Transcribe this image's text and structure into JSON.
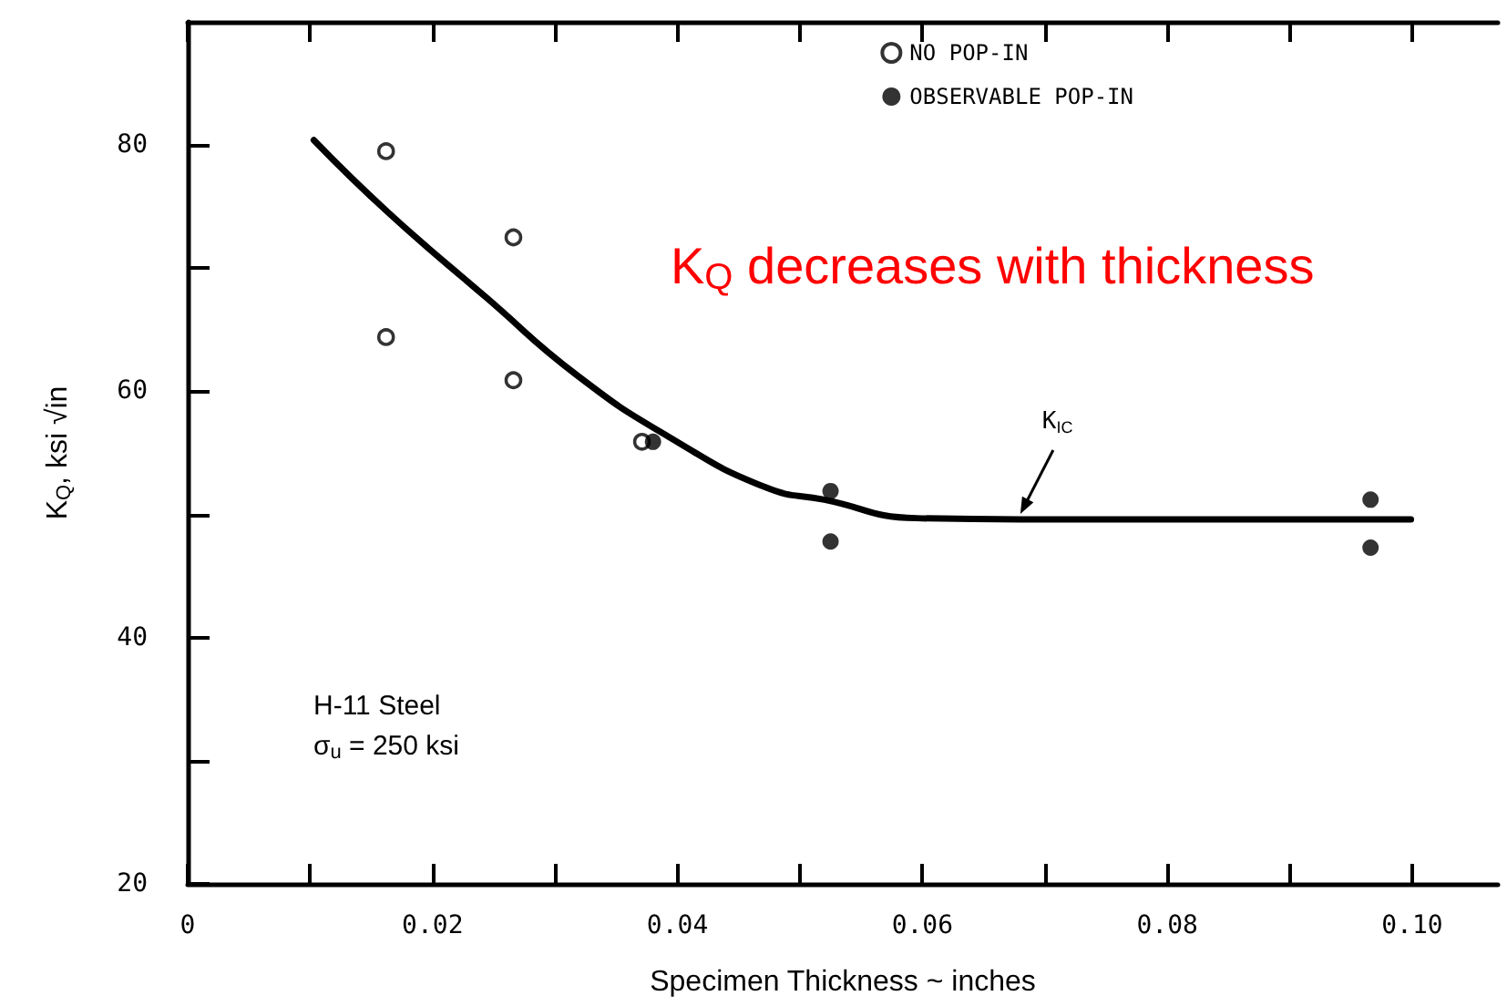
{
  "chart_data": {
    "type": "scatter",
    "xlabel": "Specimen Thickness ~ inches",
    "ylabel": "K$_{Q}$, ksi √in",
    "xlim": [
      0,
      0.107
    ],
    "xticks": [
      0,
      {
        "value": 0.01,
        "label": null
      },
      0.02,
      {
        "value": 0.03,
        "label": null
      },
      0.04,
      {
        "value": 0.05,
        "label": null
      },
      0.06,
      {
        "value": 0.07,
        "label": null
      },
      0.08,
      {
        "value": 0.09,
        "label": null
      },
      {
        "value": 0.1,
        "label": "0.10"
      }
    ],
    "ylim": [
      20,
      90
    ],
    "yticks": [
      20,
      {
        "value": 30,
        "label": null
      },
      40,
      {
        "value": 50,
        "label": null
      },
      60,
      {
        "value": 70,
        "label": null
      },
      80
    ],
    "grid": false,
    "legend": "top right",
    "series": [
      {
        "name": "NO POP-IN",
        "color": "#000000",
        "marker": "circle",
        "x": [
          0.0162,
          0.0162,
          0.0266,
          0.0266,
          0.0371
        ],
        "values": [
          79.5,
          64.4,
          72.5,
          60.9,
          55.9
        ]
      },
      {
        "name": "OBSERVABLE POP-IN",
        "color": "#000000",
        "marker": "circle",
        "x": [
          0.038,
          0.0525,
          0.0525,
          0.0966,
          0.0966
        ],
        "values": [
          55.9,
          51.9,
          47.8,
          51.2,
          47.3
        ]
      },
      {
        "type": "line",
        "color": "#000000",
        "marker": "none",
        "x": [
          0.0103,
          0.0164,
          0.0244,
          0.0318,
          0.0393,
          0.0472,
          0.052,
          0.0595,
          0.068,
          0.0999
        ],
        "values": [
          80.4,
          74.5,
          67.6,
          61.3,
          56.3,
          52.2,
          51.2,
          49.7,
          49.6,
          49.6
        ]
      }
    ],
    "annotations": [
      {
        "text": "K$_{IC}$",
        "x": 0.068,
        "y": 49.6
      },
      "K$_{Q}$ decreases with thickness",
      "H-11 Steel",
      "σ$_{u}$ = 250 ksi"
    ]
  }
}
